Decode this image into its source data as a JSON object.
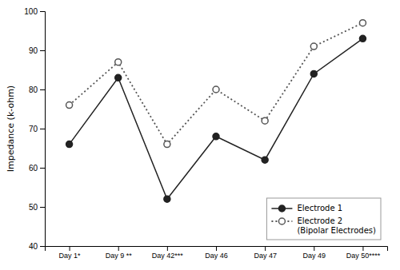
{
  "chart_data": {
    "type": "line",
    "categories": [
      "Day 1*",
      "Day 9 **",
      "Day 42***",
      "Day 46",
      "Day 47",
      "Day 49",
      "Day 50****"
    ],
    "series": [
      {
        "name": "Electrode 1",
        "color": "#222222",
        "values": [
          66,
          83,
          52,
          68,
          62,
          84,
          93
        ],
        "marker": "circle",
        "line_style": "solid"
      },
      {
        "name": "Electrode 2\n(Bipolar Electrodes)",
        "color": "#555555",
        "values": [
          76,
          87,
          66,
          80,
          72,
          91,
          97
        ],
        "marker": "open-circle",
        "line_style": "dotted"
      }
    ],
    "ylim": [
      40,
      100
    ],
    "yticks": [
      40,
      50,
      60,
      70,
      80,
      90,
      100
    ],
    "ylabel": "Impedance (k-ohm)",
    "grid": false,
    "legend": "lower right"
  }
}
